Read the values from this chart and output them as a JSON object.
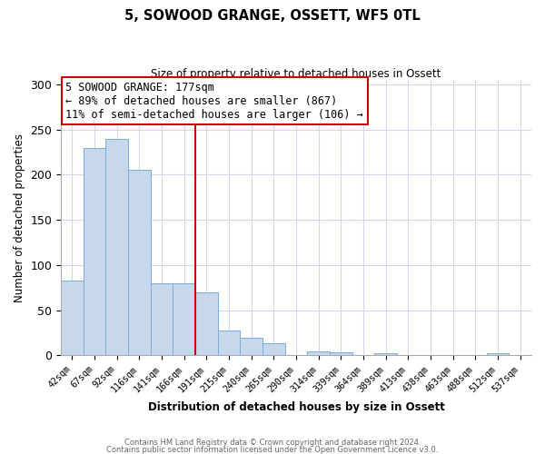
{
  "title": "5, SOWOOD GRANGE, OSSETT, WF5 0TL",
  "subtitle": "Size of property relative to detached houses in Ossett",
  "xlabel": "Distribution of detached houses by size in Ossett",
  "ylabel": "Number of detached properties",
  "bin_labels": [
    "42sqm",
    "67sqm",
    "92sqm",
    "116sqm",
    "141sqm",
    "166sqm",
    "191sqm",
    "215sqm",
    "240sqm",
    "265sqm",
    "290sqm",
    "314sqm",
    "339sqm",
    "364sqm",
    "389sqm",
    "413sqm",
    "438sqm",
    "463sqm",
    "488sqm",
    "512sqm",
    "537sqm"
  ],
  "bin_values": [
    83,
    230,
    240,
    205,
    80,
    80,
    70,
    28,
    20,
    13,
    0,
    4,
    3,
    0,
    2,
    0,
    0,
    0,
    0,
    2,
    0
  ],
  "bar_color": "#c8d8ec",
  "bar_edge_color": "#7aaed6",
  "vline_color": "#cc0000",
  "annotation_text": "5 SOWOOD GRANGE: 177sqm\n← 89% of detached houses are smaller (867)\n11% of semi-detached houses are larger (106) →",
  "annotation_box_color": "white",
  "annotation_box_edge": "#cc0000",
  "ylim": [
    0,
    305
  ],
  "yticks": [
    0,
    50,
    100,
    150,
    200,
    250,
    300
  ],
  "footer_line1": "Contains HM Land Registry data © Crown copyright and database right 2024.",
  "footer_line2": "Contains public sector information licensed under the Open Government Licence v3.0.",
  "bg_color": "white",
  "grid_color": "#d0d8e8"
}
